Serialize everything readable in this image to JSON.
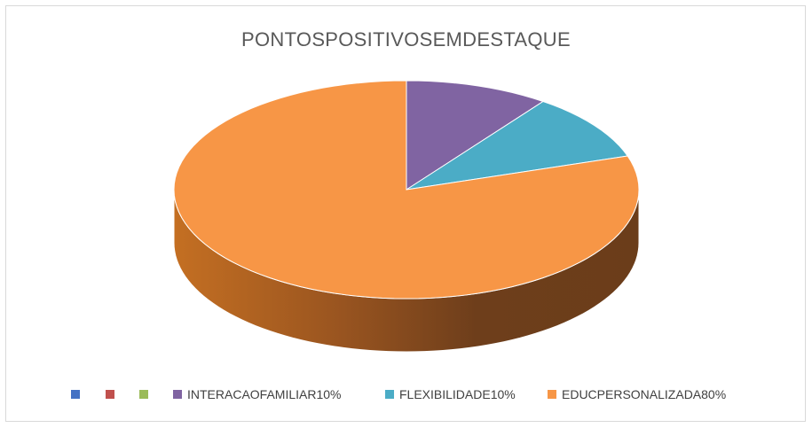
{
  "chart_data": {
    "type": "pie",
    "title": "PONTOSPOSITIVOSEMDESTAQUE",
    "three_d": true,
    "legend_position": "bottom",
    "slices": [
      {
        "label": "",
        "value": 0,
        "color": "#4472c4"
      },
      {
        "label": "",
        "value": 0,
        "color": "#c0504d"
      },
      {
        "label": "",
        "value": 0,
        "color": "#9bbb59"
      },
      {
        "label": "INTERACAOFAMILIAR10%",
        "value": 10,
        "color": "#8064a2"
      },
      {
        "label": "FLEXIBILIDADE10%",
        "value": 10,
        "color": "#4bacc6"
      },
      {
        "label": "EDUCPERSONALIZADA80%",
        "value": 80,
        "color": "#f79646"
      }
    ]
  }
}
